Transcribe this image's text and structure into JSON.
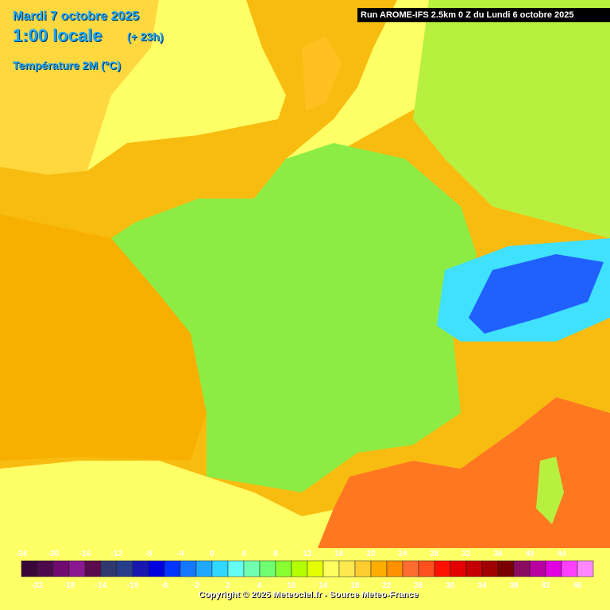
{
  "header": {
    "date": "Mardi 7 octobre 2025",
    "time": "1:00 locale",
    "lead": "(+ 23h)",
    "parameter": "Température 2M (°C)",
    "run": "Run AROME-IFS 2.5km 0 Z du Lundi 6 octobre 2025"
  },
  "legend": {
    "labels": [
      -24,
      -22,
      -20,
      -18,
      -16,
      -14,
      -12,
      -10,
      -8,
      -6,
      -4,
      -2,
      0,
      2,
      4,
      6,
      8,
      10,
      12,
      14,
      16,
      18,
      20,
      22,
      24,
      26,
      28,
      30,
      32,
      34,
      36,
      38,
      40,
      42,
      44,
      46
    ],
    "colors": [
      "#3a0838",
      "#4c0a4c",
      "#6e0a70",
      "#8a1890",
      "#5c0c4c",
      "#303870",
      "#283c8c",
      "#1818b0",
      "#0000e0",
      "#0034ff",
      "#1478ff",
      "#20a8ff",
      "#30d8ff",
      "#64fff0",
      "#70ffb0",
      "#70ff70",
      "#88ff30",
      "#b4ff00",
      "#e4ff00",
      "#ffff60",
      "#ffe850",
      "#ffcc30",
      "#ffae00",
      "#ff9000",
      "#ff6c30",
      "#ff5020",
      "#ff1000",
      "#e40000",
      "#c40000",
      "#a00000",
      "#780000",
      "#8a0c60",
      "#b800a0",
      "#e000e0",
      "#ff40ff",
      "#ff88ff"
    ]
  },
  "footer": {
    "copyright": "Copyright © 2025 Meteociel.fr - Source Meteo-France"
  }
}
